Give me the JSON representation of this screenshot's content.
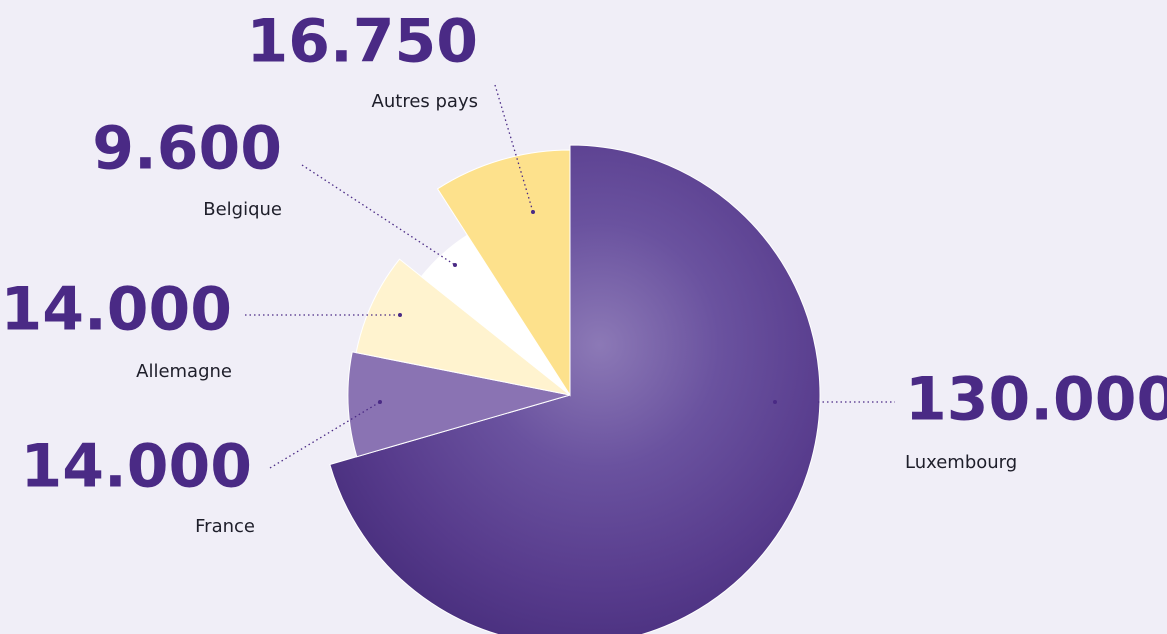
{
  "chart_data": {
    "type": "pie",
    "categories": [
      "Luxembourg",
      "France",
      "Allemagne",
      "Belgique",
      "Autres pays"
    ],
    "values": [
      130000,
      14000,
      14000,
      9600,
      16750
    ],
    "value_labels": [
      "130.000",
      "14.000",
      "14.000",
      "9.600",
      "16.750"
    ],
    "colors": [
      "#5d4393",
      "#8a73b3",
      "#fff3cf",
      "#ffffff",
      "#fde18c"
    ]
  }
}
